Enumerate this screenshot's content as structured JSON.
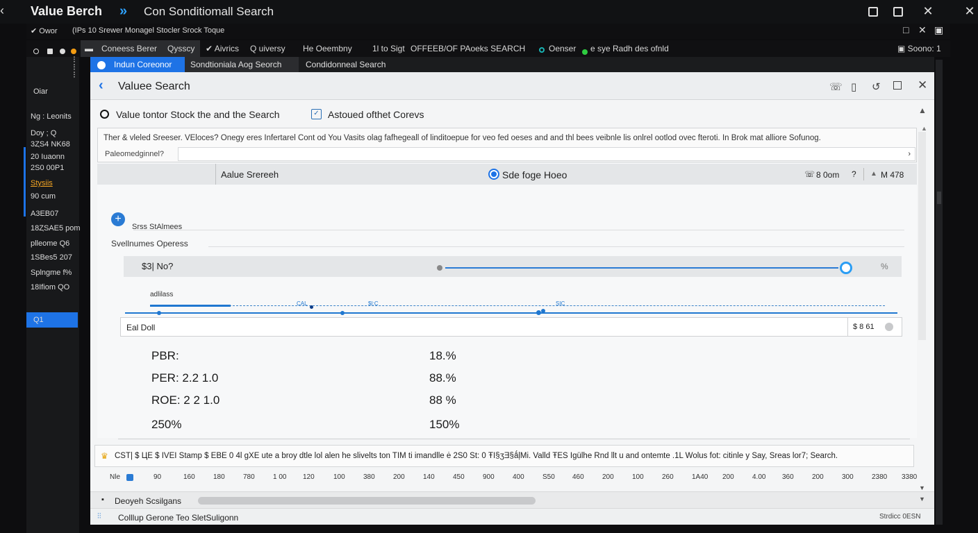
{
  "window": {
    "title_left": "Value Berch",
    "title_chevron": "»",
    "title_right": "Con  Sonditiomall Search",
    "controls": [
      "□",
      "□",
      "✕"
    ]
  },
  "menubar": {
    "items": [
      "✔ Owor",
      "(IPs  10 Srewer  Monagel Stocler  Srock Toque"
    ],
    "right_icons": [
      "□",
      "✕",
      "▣"
    ]
  },
  "toolbar": {
    "items": [
      "Coneess Berer",
      "Qysscy",
      "✔ Aivrics",
      "Q uiversy",
      "He  Oeembny",
      "1l  to  Sigt",
      "OFFEEB/OF  PAoeks SEARCH",
      "Oenser",
      "e sye Radh des ofnld"
    ],
    "right": "▣ Soono: 1"
  },
  "leftpanel": {
    "items": [
      "Oiar",
      "Ng : Leonits",
      "Doy ; Q",
      "3ȤS4 NK68",
      "20 Iuaonn",
      "2S0 00P1",
      "Stysiis",
      "90 cum",
      "A3EB07",
      "18ȤSAE5 pom",
      "plleome  Q6",
      "1SBes5 207",
      "Splngme  f%",
      "18Ifiom  QO",
      "Q1"
    ]
  },
  "tabs": [
    "Indun Coreonor",
    "Sondtioniala Aog Seorch",
    "Condidonneal Search"
  ],
  "dialog": {
    "title": "Valuee Search",
    "option1": "Value tontor Stock the  and the Search",
    "option2": "Astoued ofthet Corevs",
    "desc": "Ther & vleled Sreeser.  VEloces? Onegy eres Infertarel Cont od You Vasits olag fafhegeall of linditoepue for veo fed oeses and and thl bees veibnle lis onlrel ootlod ovec fteroti. In Brok mat alliore Sofunog.",
    "placeholder_label": "Paleomedginnel?",
    "search_header": {
      "left": "Aalue Srereeh",
      "mid": "Sde foge Hoeo",
      "right1": "8 0om",
      "right2": "?",
      "right3": "M 478"
    },
    "section": {
      "title1": "Srss StAlmees",
      "title2": "Svellnumes Operess",
      "slider_label": "$3| No?",
      "slider_value": "%",
      "slider_level": 0.97,
      "chart_label": "adlilass",
      "chart_marks": [
        "CAL",
        "$I:C",
        "SIC"
      ],
      "eat_label": "Eal Doll",
      "eat_right": "$ 8 61"
    },
    "metrics": [
      {
        "label": "PBR:",
        "value": "18.%"
      },
      {
        "label": "PER: 2.2 1.0",
        "value": "88.%"
      },
      {
        "label": "ROE: 2 2 1.0",
        "value": "88 %"
      },
      {
        "label": "250%",
        "value": "150%"
      }
    ],
    "note": "CST| $ ЦE $ IVEI Stamp $ EBE 0 4l gXE ute a broy dtle lol alen he slivelts ton TIM ti imandlle ė 2S0 St: 0 ŦI§ʒƎ§ǻļMi. Valld ŦES Igülhe Rnd llt u and ontemte .1L Wolus fot: citinle y Say, Sreas lor7; Search.",
    "scale": [
      "Nle",
      "90",
      "160",
      "180",
      "780",
      "1 00",
      "120",
      "100",
      "380",
      "200",
      "140",
      "450",
      "900",
      "400",
      "S50",
      "460",
      "200",
      "100",
      "260",
      "1A40",
      "200",
      "4.00",
      "360",
      "200",
      "300",
      "2380",
      "3380"
    ],
    "footer_label": "Deoyeh Scsilgans",
    "status_left": "Colllup Gerone  Teo SletSuligonn",
    "status_right": "Strdicc 0ESN"
  }
}
